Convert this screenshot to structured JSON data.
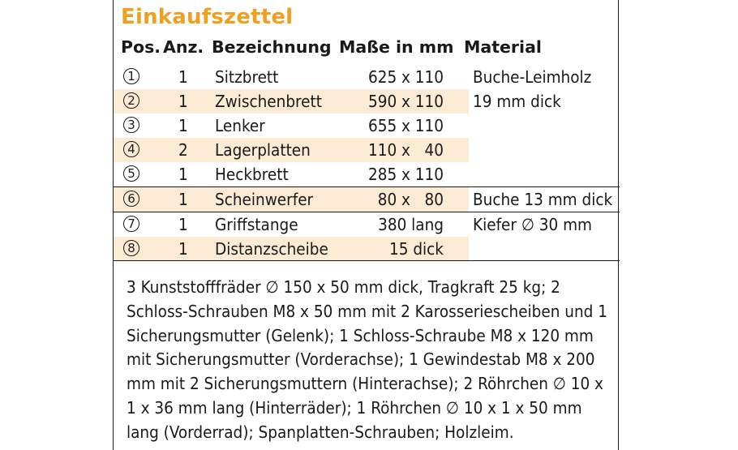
{
  "title": "Einkaufszettel",
  "headers": {
    "pos": "Pos.",
    "anz": "Anz.",
    "bezeichnung": "Bezeichnung",
    "masse": "Maße in mm",
    "material": "Material"
  },
  "rows": [
    {
      "pos": "1",
      "anz": "1",
      "bezeichnung": "Sitzbrett",
      "masse": "625 x 110"
    },
    {
      "pos": "2",
      "anz": "1",
      "bezeichnung": "Zwischenbrett",
      "masse": "590 x 110"
    },
    {
      "pos": "3",
      "anz": "1",
      "bezeichnung": "Lenker",
      "masse": "655 x 110"
    },
    {
      "pos": "4",
      "anz": "2",
      "bezeichnung": "Lagerplatten",
      "masse": "110 x   40"
    },
    {
      "pos": "5",
      "anz": "1",
      "bezeichnung": "Heckbrett",
      "masse": "285 x 110"
    },
    {
      "pos": "6",
      "anz": "1",
      "bezeichnung": "Scheinwerfer",
      "masse": "80 x   80"
    },
    {
      "pos": "7",
      "anz": "1",
      "bezeichnung": "Griffstange",
      "masse": "380 lang"
    },
    {
      "pos": "8",
      "anz": "1",
      "bezeichnung": "Distanzscheibe",
      "masse": "15 dick"
    }
  ],
  "materials": {
    "group1_line1": "Buche-Leimholz",
    "group1_line2": "19 mm dick",
    "group2": "Buche 13 mm dick",
    "group3": "Kiefer ∅ 30 mm"
  },
  "notes": "3 Kunststofffräder ∅ 150 x 50 mm dick, Tragkraft 25 kg; 2 Schloss-Schrauben M8 x 50 mm mit 2 Karosseriescheiben und 1 Sicherungsmutter (Gelenk); 1 Schloss-Schraube M8 x 120 mm mit Sicherungsmutter (Vorderachse); 1 Gewindestab M8 x 200 mm mit 2 Sicherungsmuttern (Hinterachse); 2 Röhrchen ∅ 10 x 1 x 36 mm lang (Hinterräder); 1 Röhrchen ∅ 10 x 1 x 50 mm lang (Vorderrad); Spanplatten-Schrauben; Holzleim.",
  "colors": {
    "title": "#f0a020",
    "row_shade": "#fcebd4",
    "text": "#1a1a1a"
  }
}
